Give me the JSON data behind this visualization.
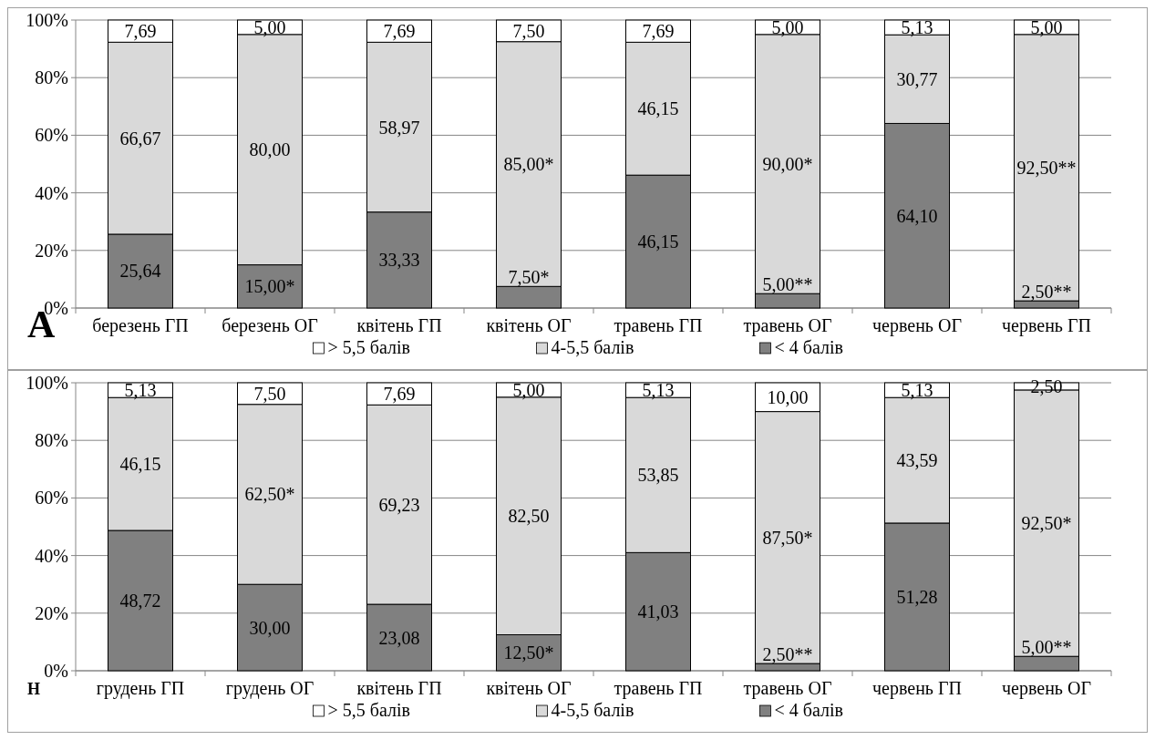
{
  "chart_data": [
    {
      "type": "bar",
      "stacked": true,
      "categories": [
        "березень ГП",
        "березень ОГ",
        "квітень ГП",
        "квітень ОГ",
        "травень ГП",
        "травень ОГ",
        "червень ОГ",
        "червень ГП"
      ],
      "series": [
        {
          "name": "< 4 балів",
          "color": "#808080",
          "values": [
            25.64,
            15.0,
            33.33,
            7.5,
            46.15,
            5.0,
            64.1,
            2.5
          ],
          "value_labels": [
            "25,64",
            "15,00*",
            "33,33",
            "7,50*",
            "46,15",
            "5,00**",
            "64,10",
            "2,50**"
          ]
        },
        {
          "name": "4-5,5 балів",
          "color": "#d9d9d9",
          "values": [
            66.67,
            80.0,
            58.97,
            85.0,
            46.15,
            90.0,
            30.77,
            92.5
          ],
          "value_labels": [
            "66,67",
            "80,00",
            "58,97",
            "85,00*",
            "46,15",
            "90,00*",
            "30,77",
            "92,50**"
          ]
        },
        {
          "name": "> 5,5 балів",
          "color": "#ffffff",
          "values": [
            7.69,
            5.0,
            7.69,
            7.5,
            7.69,
            5.0,
            5.13,
            5.0
          ],
          "value_labels": [
            "7,69",
            "5,00",
            "7,69",
            "7,50",
            "7,69",
            "5,00",
            "5,13",
            "5,00"
          ]
        }
      ],
      "ylim": [
        0,
        100
      ],
      "yticks": [
        {
          "value": 0,
          "label": "0%"
        },
        {
          "value": 20,
          "label": "20%"
        },
        {
          "value": 40,
          "label": "40%"
        },
        {
          "value": 60,
          "label": "60%"
        },
        {
          "value": 80,
          "label": "80%"
        },
        {
          "value": 100,
          "label": "100%"
        }
      ],
      "grid": "y",
      "legend": "bottom",
      "annotations": [
        "A"
      ]
    },
    {
      "type": "bar",
      "stacked": true,
      "categories": [
        "грудень ГП",
        "грудень ОГ",
        "квітень ГП",
        "квітень ОГ",
        "травень ГП",
        "травень ОГ",
        "червень ГП",
        "червень ОГ"
      ],
      "series": [
        {
          "name": "< 4 балів",
          "color": "#808080",
          "values": [
            48.72,
            30.0,
            23.08,
            12.5,
            41.03,
            2.5,
            51.28,
            5.0
          ],
          "value_labels": [
            "48,72",
            "30,00",
            "23,08",
            "12,50*",
            "41,03",
            "2,50**",
            "51,28",
            "5,00**"
          ]
        },
        {
          "name": "4-5,5 балів",
          "color": "#d9d9d9",
          "values": [
            46.15,
            62.5,
            69.23,
            82.5,
            53.85,
            87.5,
            43.59,
            92.5
          ],
          "value_labels": [
            "46,15",
            "62,50*",
            "69,23",
            "82,50",
            "53,85",
            "87,50*",
            "43,59",
            "92,50*"
          ]
        },
        {
          "name": "> 5,5 балів",
          "color": "#ffffff",
          "values": [
            5.13,
            7.5,
            7.69,
            5.0,
            5.13,
            10.0,
            5.13,
            2.5
          ],
          "value_labels": [
            "5,13",
            "7,50",
            "7,69",
            "5,00",
            "5,13",
            "10,00",
            "5,13",
            "2,50"
          ]
        }
      ],
      "ylim": [
        0,
        100
      ],
      "yticks": [
        {
          "value": 0,
          "label": "0%"
        },
        {
          "value": 20,
          "label": "20%"
        },
        {
          "value": 40,
          "label": "40%"
        },
        {
          "value": 60,
          "label": "60%"
        },
        {
          "value": 80,
          "label": "80%"
        },
        {
          "value": 100,
          "label": "100%"
        }
      ],
      "grid": "y",
      "legend": "bottom",
      "annotations": [
        "Н"
      ]
    }
  ]
}
